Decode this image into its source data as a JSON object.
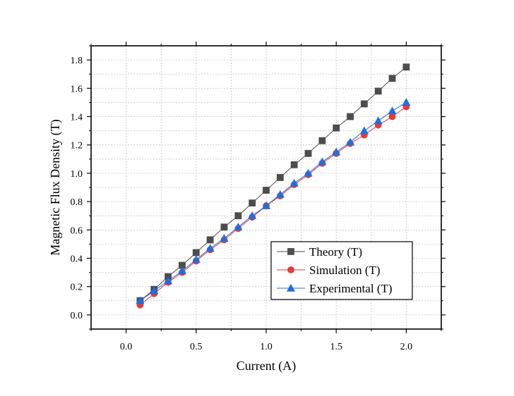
{
  "chart_data": {
    "type": "line",
    "title": "",
    "xlabel": "Current (A)",
    "ylabel": "Magnetic Flux Density (T)",
    "xlim": [
      -0.25,
      2.25
    ],
    "ylim": [
      -0.1,
      1.9
    ],
    "xticks": [
      0.0,
      0.5,
      1.0,
      1.5,
      2.0
    ],
    "xtick_labels": [
      "0.0",
      "0.5",
      "1.0",
      "1.5",
      "2.0"
    ],
    "yticks": [
      0.0,
      0.2,
      0.4,
      0.6,
      0.8,
      1.0,
      1.2,
      1.4,
      1.6,
      1.8
    ],
    "ytick_labels": [
      "0.0",
      "0.2",
      "0.4",
      "0.6",
      "0.8",
      "1.0",
      "1.2",
      "1.4",
      "1.6",
      "1.8"
    ],
    "grid": true,
    "legend_position": "bottom-right",
    "x": [
      0.1,
      0.2,
      0.3,
      0.4,
      0.5,
      0.6,
      0.7,
      0.8,
      0.9,
      1.0,
      1.1,
      1.2,
      1.3,
      1.4,
      1.5,
      1.6,
      1.7,
      1.8,
      1.9,
      2.0
    ],
    "series": [
      {
        "name": "Theory (T)",
        "marker": "square",
        "color": "#4d4d4d",
        "values": [
          0.1,
          0.18,
          0.27,
          0.35,
          0.44,
          0.53,
          0.62,
          0.7,
          0.79,
          0.88,
          0.97,
          1.06,
          1.14,
          1.23,
          1.32,
          1.4,
          1.49,
          1.58,
          1.67,
          1.75
        ]
      },
      {
        "name": "Simulation (T)",
        "marker": "circle",
        "color": "#e8393b",
        "values": [
          0.07,
          0.15,
          0.23,
          0.3,
          0.38,
          0.46,
          0.53,
          0.61,
          0.69,
          0.77,
          0.84,
          0.92,
          0.99,
          1.07,
          1.14,
          1.21,
          1.27,
          1.34,
          1.4,
          1.47
        ]
      },
      {
        "name": "Experimental (T)",
        "marker": "triangle",
        "color": "#1f6fdf",
        "values": [
          0.1,
          0.17,
          0.24,
          0.31,
          0.39,
          0.47,
          0.54,
          0.62,
          0.7,
          0.77,
          0.85,
          0.93,
          1.0,
          1.08,
          1.15,
          1.22,
          1.3,
          1.37,
          1.44,
          1.5
        ]
      }
    ]
  }
}
